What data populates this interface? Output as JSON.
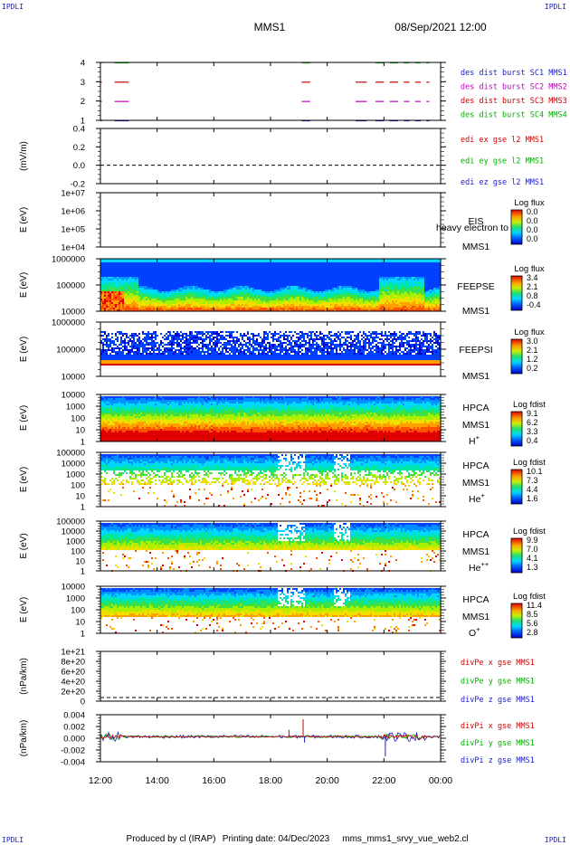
{
  "corners": {
    "top_left": "IPDLI",
    "top_right": "IPDLI",
    "bottom_left": "IPDLI",
    "bottom_right": "IPDLI"
  },
  "header": {
    "mission": "MMS1",
    "date": "08/Sep/2021 12:00"
  },
  "footer": {
    "producer": "Produced by cl (IRAP)",
    "printing": "Printing date: 04/Dec/2023",
    "file": "mms_mms1_srvy_vue_web2.cl"
  },
  "chart_data": {
    "x_ticks": [
      "12:00",
      "14:00",
      "16:00",
      "18:00",
      "20:00",
      "22:00",
      "00:00"
    ],
    "panels": [
      {
        "id": "burst",
        "type": "line",
        "yticks": [
          "4",
          "3",
          "2",
          "1"
        ],
        "legend": [
          {
            "text": "des dist burst SC1 MMS1",
            "color": "#1a1ad0"
          },
          {
            "text": "des dist burst SC2 MMS2",
            "color": "#c000c0"
          },
          {
            "text": "des dist burst SC3 MMS3",
            "color": "#d00000"
          },
          {
            "text": "des dist burst SC4 MMS4",
            "color": "#00b000"
          }
        ],
        "intervals": [
          [
            12.0,
            12.05
          ],
          [
            12.5,
            13.0
          ],
          [
            19.1,
            19.4
          ],
          [
            21.0,
            21.4
          ],
          [
            21.7,
            22.0
          ],
          [
            22.2,
            22.5
          ],
          [
            22.7,
            22.9
          ],
          [
            23.1,
            23.3
          ],
          [
            23.5,
            23.6
          ]
        ]
      },
      {
        "id": "edi",
        "type": "line",
        "ylabel": "(mV/m)",
        "yticks": [
          "0.4",
          "0.2",
          "0.0",
          "-0.2"
        ],
        "ylim": [
          -0.2,
          0.4
        ],
        "legend": [
          {
            "text": "edi ex gse l2 MMS1",
            "color": "#d00000"
          },
          {
            "text": "edi ey gse l2 MMS1",
            "color": "#00b000"
          },
          {
            "text": "edi ez gse l2 MMS1",
            "color": "#1a1ad0"
          }
        ]
      },
      {
        "id": "eis",
        "type": "heatmap",
        "ylabel": "E (eV)",
        "yticks": [
          "1e+07",
          "1e+06",
          "1e+05",
          "1e+04"
        ],
        "labels": [
          "EIS",
          "MMS1"
        ],
        "overlay_text": "heavy electron to",
        "colorbar": {
          "title": "Log flux",
          "ticks": [
            "0.0",
            "0.0",
            "0.0",
            "0.0"
          ]
        }
      },
      {
        "id": "feepse",
        "type": "heatmap",
        "ylabel": "E (eV)",
        "yticks": [
          "1000000",
          "100000",
          "10000"
        ],
        "labels": [
          "FEEPSE",
          "MMS1"
        ],
        "colorbar": {
          "title": "Log flux",
          "ticks": [
            "3.4",
            "2.1",
            "0.8",
            "-0.4"
          ]
        }
      },
      {
        "id": "feepsi",
        "type": "heatmap",
        "ylabel": "E (eV)",
        "yticks": [
          "1000000",
          "100000",
          "10000"
        ],
        "labels": [
          "FEEPSI",
          "MMS1"
        ],
        "colorbar": {
          "title": "Log flux",
          "ticks": [
            "3.0",
            "2.1",
            "1.2",
            "0.2"
          ]
        }
      },
      {
        "id": "hpca_h",
        "type": "heatmap",
        "ylabel": "E (eV)",
        "yticks": [
          "10000",
          "1000",
          "100",
          "10",
          "1"
        ],
        "labels": [
          "HPCA",
          "MMS1"
        ],
        "species": "H",
        "species_sup": "+",
        "colorbar": {
          "title": "Log fdist",
          "ticks": [
            "9.1",
            "6.2",
            "3.3",
            "0.4"
          ]
        }
      },
      {
        "id": "hpca_he",
        "type": "heatmap",
        "ylabel": "E (eV)",
        "yticks": [
          "100000",
          "10000",
          "1000",
          "100",
          "10",
          "1"
        ],
        "labels": [
          "HPCA",
          "MMS1"
        ],
        "species": "He",
        "species_sup": "+",
        "colorbar": {
          "title": "Log fdist",
          "ticks": [
            "10.1",
            "7.3",
            "4.4",
            "1.6"
          ]
        }
      },
      {
        "id": "hpca_hepp",
        "type": "heatmap",
        "ylabel": "E (eV)",
        "yticks": [
          "100000",
          "10000",
          "1000",
          "100",
          "10",
          "1"
        ],
        "labels": [
          "HPCA",
          "MMS1"
        ],
        "species": "He",
        "species_sup": "++",
        "colorbar": {
          "title": "Log fdist",
          "ticks": [
            "9.9",
            "7.0",
            "4.1",
            "1.3"
          ]
        }
      },
      {
        "id": "hpca_o",
        "type": "heatmap",
        "ylabel": "E (eV)",
        "yticks": [
          "10000",
          "1000",
          "100",
          "10",
          "1"
        ],
        "labels": [
          "HPCA",
          "MMS1"
        ],
        "species": "O",
        "species_sup": "+",
        "colorbar": {
          "title": "Log fdist",
          "ticks": [
            "11.4",
            "8.5",
            "5.6",
            "2.8"
          ]
        }
      },
      {
        "id": "divpe",
        "type": "line",
        "ylabel": "(nPa/km)",
        "yticks": [
          "1e+21",
          "8e+20",
          "6e+20",
          "4e+20",
          "2e+20",
          "0"
        ],
        "ylim": [
          0,
          1.05e+21
        ],
        "legend": [
          {
            "text": "divPe x gse MMS1",
            "color": "#d00000"
          },
          {
            "text": "divPe y gse MMS1",
            "color": "#00b000"
          },
          {
            "text": "divPe z gse MMS1",
            "color": "#1a1ad0"
          }
        ]
      },
      {
        "id": "divpi",
        "type": "line",
        "ylabel": "(nPa/km)",
        "yticks": [
          "0.004",
          "0.002",
          "0.000",
          "-0.002",
          "-0.004"
        ],
        "ylim": [
          -0.0055,
          0.0048
        ],
        "legend": [
          {
            "text": "divPi x gse MMS1",
            "color": "#d00000"
          },
          {
            "text": "divPi y gse MMS1",
            "color": "#00b000"
          },
          {
            "text": "divPi z gse MMS1",
            "color": "#1a1ad0"
          }
        ],
        "spikes": [
          {
            "t": 19.15,
            "v": 0.0038,
            "color": "#d00000"
          },
          {
            "t": 18.65,
            "v": 0.0015,
            "color": "#d00000"
          },
          {
            "t": 22.05,
            "v": -0.0043,
            "color": "#1a1ad0"
          },
          {
            "t": 19.2,
            "v": -0.0013,
            "color": "#1a1ad0"
          }
        ]
      }
    ]
  }
}
